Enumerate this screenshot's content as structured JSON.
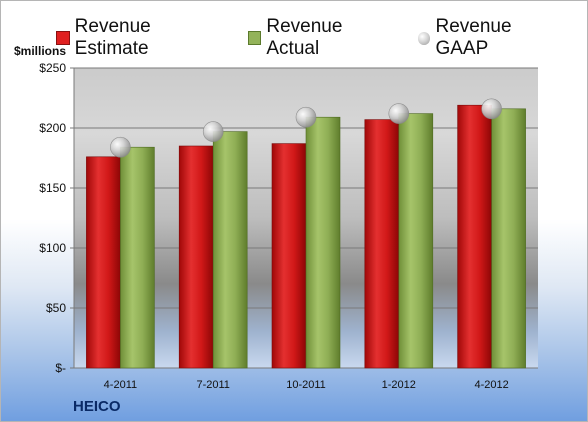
{
  "legend": {
    "estimate": "Revenue Estimate",
    "actual": "Revenue Actual",
    "gaap": "Revenue GAAP"
  },
  "unit_label": "$millions",
  "company": "HEICO",
  "colors": {
    "estimate": "#e02020",
    "actual": "#93b35a",
    "gaap": "#c8c8c8"
  },
  "chart_data": {
    "type": "bar",
    "categories": [
      "4-2011",
      "7-2011",
      "10-2011",
      "1-2012",
      "4-2012"
    ],
    "series": [
      {
        "name": "Revenue Estimate",
        "values": [
          176,
          185,
          187,
          207,
          219
        ]
      },
      {
        "name": "Revenue Actual",
        "values": [
          184,
          197,
          209,
          212,
          216
        ]
      },
      {
        "name": "Revenue GAAP",
        "values": [
          184,
          197,
          209,
          212,
          216
        ]
      }
    ],
    "ylim": [
      0,
      250
    ],
    "yticks": [
      0,
      50,
      100,
      150,
      200,
      250
    ],
    "ytick_labels": [
      "$-",
      "$50",
      "$100",
      "$150",
      "$200",
      "$250"
    ],
    "ylabel": "$millions",
    "grid": true,
    "legend_position": "top"
  }
}
